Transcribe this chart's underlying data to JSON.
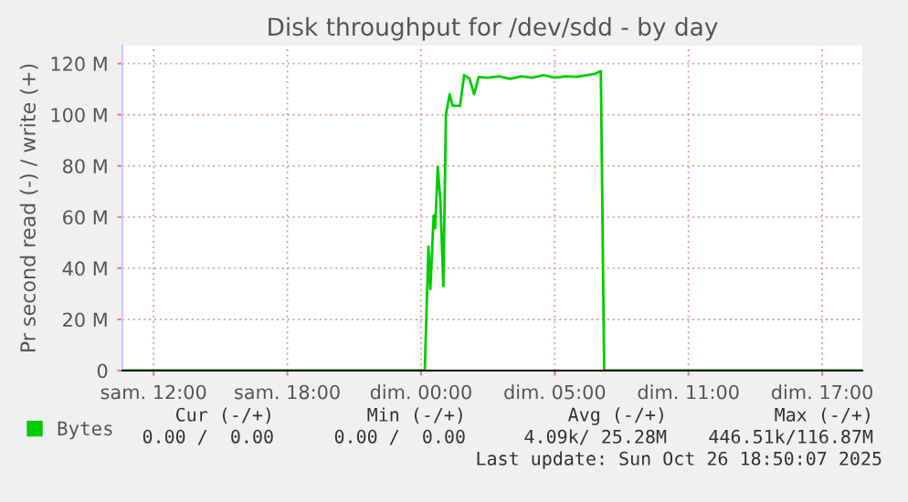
{
  "chart_data": {
    "type": "line",
    "title": "Disk throughput for /dev/sdd - by day",
    "ylabel": "Pr second read (-) / write (+)",
    "x": [
      "2025-10-25T08:36",
      "2025-10-25T22:00",
      "2025-10-25T22:10",
      "2025-10-25T22:20",
      "2025-10-25T22:25",
      "2025-10-25T22:34",
      "2025-10-25T22:38",
      "2025-10-25T22:45",
      "2025-10-25T22:52",
      "2025-10-25T23:00",
      "2025-10-25T23:07",
      "2025-10-25T23:17",
      "2025-10-25T23:25",
      "2025-10-25T23:45",
      "2025-10-25T23:56",
      "2025-10-26T00:10",
      "2025-10-26T00:23",
      "2025-10-26T00:35",
      "2025-10-26T01:00",
      "2025-10-26T01:30",
      "2025-10-26T02:00",
      "2025-10-26T02:30",
      "2025-10-26T03:00",
      "2025-10-26T03:30",
      "2025-10-26T04:00",
      "2025-10-26T04:30",
      "2025-10-26T05:00",
      "2025-10-26T05:30",
      "2025-10-26T05:48",
      "2025-10-26T06:04",
      "2025-10-26T06:13",
      "2025-10-26T17:48"
    ],
    "series": [
      {
        "name": "Bytes",
        "color": "#00cc00",
        "values": [
          0,
          0,
          0,
          48.5,
          31.8,
          60.5,
          55.7,
          79.6,
          66.5,
          33,
          100,
          108,
          103.5,
          103.5,
          115.4,
          114.2,
          108,
          114.7,
          114.5,
          115,
          114,
          115,
          114.5,
          115.5,
          114.5,
          115,
          114.8,
          115.5,
          116,
          117,
          0,
          0
        ]
      }
    ],
    "xlim": [
      "2025-10-25T08:36",
      "2025-10-26T17:48"
    ],
    "xticks": [
      {
        "value": "2025-10-25T10:00",
        "label": "sam. 12:00"
      },
      {
        "value": "2025-10-25T16:00",
        "label": "sam. 18:00"
      },
      {
        "value": "2025-10-25T22:00",
        "label": "dim. 00:00"
      },
      {
        "value": "2025-10-26T04:00",
        "label": "dim. 05:00"
      },
      {
        "value": "2025-10-26T10:00",
        "label": "dim. 11:00"
      },
      {
        "value": "2025-10-26T16:00",
        "label": "dim. 17:00"
      }
    ],
    "ylim": [
      0,
      127
    ],
    "yticks": [
      0,
      {
        "value": 20,
        "label": "20 M"
      },
      {
        "value": 40,
        "label": "40 M"
      },
      {
        "value": 60,
        "label": "60 M"
      },
      {
        "value": 80,
        "label": "80 M"
      },
      {
        "value": 100,
        "label": "100 M"
      },
      {
        "value": 120,
        "label": "120 M"
      }
    ],
    "grid": true,
    "legend": "bottom",
    "annotations": [
      "Cur (-/+)",
      "Min (-/+)",
      "Avg (-/+)",
      "Max (-/+)",
      "0.00 /  0.00",
      "0.00 /  0.00",
      "4.09k/ 25.28M",
      "446.51k/116.87M",
      "Last update: Sun Oct 26 18:50:07 2025"
    ]
  }
}
